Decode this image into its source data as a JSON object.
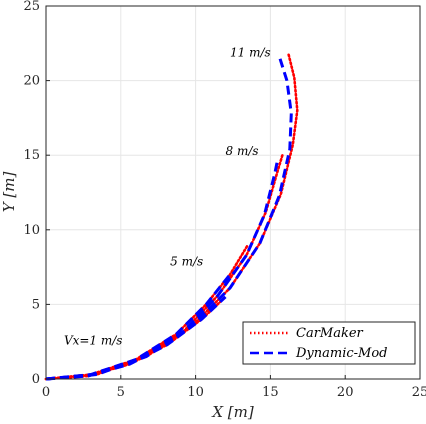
{
  "chart_data": {
    "type": "line",
    "xlabel": "X [m]",
    "ylabel": "Y [m]",
    "xlim": [
      0,
      25
    ],
    "ylim": [
      0,
      25
    ],
    "xticks": [
      0,
      5,
      10,
      15,
      20,
      25
    ],
    "yticks": [
      0,
      5,
      10,
      15,
      20,
      25
    ],
    "grid": true,
    "legend_position": "bottom-right",
    "legend": [
      {
        "name": "CarMaker",
        "color": "#ff0000",
        "style": "dotted"
      },
      {
        "name": "Dynamic-Mod",
        "color": "#0000ff",
        "style": "dashed"
      }
    ],
    "annotations": [
      {
        "text": "Vx=1 m/s",
        "x": 1.2,
        "y": 2.3
      },
      {
        "text": "5 m/s",
        "x": 8.3,
        "y": 7.6
      },
      {
        "text": "8 m/s",
        "x": 12.0,
        "y": 15.0
      },
      {
        "text": "11 m/s",
        "x": 12.3,
        "y": 21.6
      }
    ],
    "series": [
      {
        "group": "Vx=1 m/s",
        "model": "CarMaker",
        "x": [
          0,
          2.8,
          5.6,
          8.1,
          10.4,
          12.0
        ],
        "y": [
          0,
          0.2,
          1.0,
          2.3,
          4.0,
          5.5
        ]
      },
      {
        "group": "Vx=1 m/s",
        "model": "Dynamic-Mod",
        "x": [
          0,
          2.8,
          5.6,
          8.1,
          10.4,
          12.0
        ],
        "y": [
          0,
          0.2,
          1.0,
          2.3,
          4.0,
          5.5
        ]
      },
      {
        "group": "5 m/s",
        "model": "CarMaker",
        "x": [
          0,
          3.0,
          6.0,
          8.7,
          10.7,
          12.3,
          13.5
        ],
        "y": [
          0,
          0.3,
          1.3,
          3.0,
          5.0,
          7.0,
          9.0
        ]
      },
      {
        "group": "5 m/s",
        "model": "Dynamic-Mod",
        "x": [
          0,
          3.0,
          6.0,
          8.7,
          10.7,
          12.3
        ],
        "y": [
          0,
          0.3,
          1.3,
          3.0,
          5.0,
          7.0
        ]
      },
      {
        "group": "8 m/s",
        "model": "CarMaker",
        "x": [
          0,
          3.2,
          6.3,
          9.2,
          11.5,
          13.4,
          14.7,
          15.5,
          15.8
        ],
        "y": [
          0,
          0.3,
          1.4,
          3.2,
          5.6,
          8.3,
          11.2,
          14.0,
          15.0
        ]
      },
      {
        "group": "8 m/s",
        "model": "Dynamic-Mod",
        "x": [
          0,
          3.2,
          6.3,
          9.2,
          11.5,
          13.4,
          14.6,
          15.3,
          15.5
        ],
        "y": [
          0,
          0.3,
          1.4,
          3.2,
          5.6,
          8.3,
          11.0,
          13.8,
          14.8
        ]
      },
      {
        "group": "11 m/s",
        "model": "CarMaker",
        "x": [
          0,
          3.4,
          6.7,
          9.7,
          12.3,
          14.3,
          15.7,
          16.5,
          16.8,
          16.6,
          16.2
        ],
        "y": [
          0,
          0.3,
          1.5,
          3.5,
          6.1,
          9.1,
          12.4,
          15.7,
          18.0,
          20.2,
          21.8
        ]
      },
      {
        "group": "11 m/s",
        "model": "Dynamic-Mod",
        "x": [
          0,
          3.4,
          6.7,
          9.7,
          12.3,
          14.3,
          15.6,
          16.3,
          16.4,
          16.1,
          15.6
        ],
        "y": [
          0,
          0.3,
          1.5,
          3.5,
          6.1,
          9.1,
          12.3,
          15.4,
          17.8,
          20.0,
          21.6
        ]
      }
    ]
  }
}
